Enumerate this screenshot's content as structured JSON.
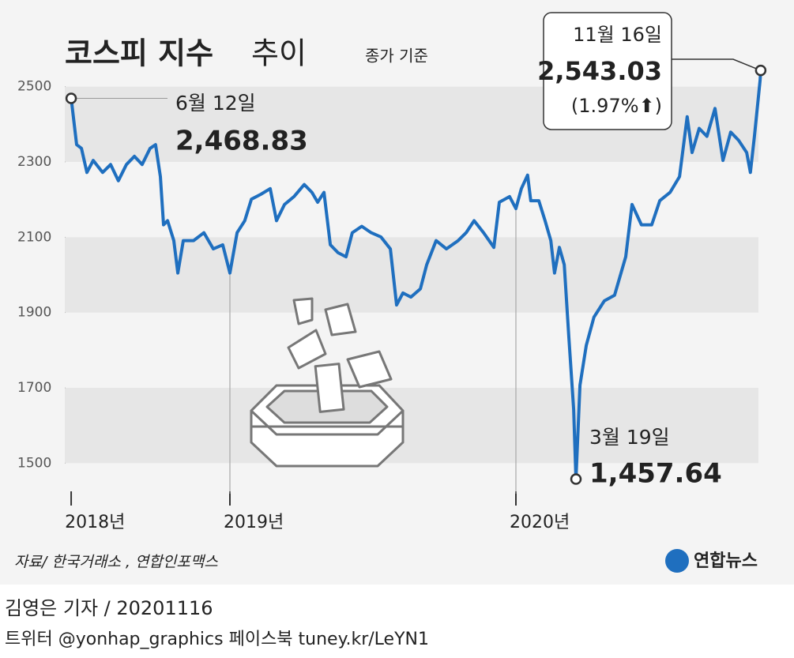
{
  "chart_data": {
    "type": "line",
    "title": "코스피 지수",
    "title_suffix": "추이",
    "subtitle": "종가 기준",
    "x": [
      2018.445,
      2018.464,
      2018.481,
      2018.5,
      2018.522,
      2018.555,
      2018.583,
      2018.61,
      2018.638,
      2018.666,
      2018.693,
      2018.721,
      2018.74,
      2018.757,
      2018.768,
      2018.782,
      2018.804,
      2018.818,
      2018.837,
      2018.873,
      2018.909,
      2018.942,
      2018.975,
      2019.0,
      2019.025,
      2019.052,
      2019.075,
      2019.108,
      2019.141,
      2019.163,
      2019.191,
      2019.224,
      2019.26,
      2019.287,
      2019.307,
      2019.329,
      2019.351,
      2019.378,
      2019.406,
      2019.428,
      2019.461,
      2019.494,
      2019.528,
      2019.561,
      2019.583,
      2019.605,
      2019.633,
      2019.666,
      2019.688,
      2019.721,
      2019.757,
      2019.798,
      2019.826,
      2019.854,
      2019.887,
      2019.923,
      2019.942,
      2019.978,
      2020.0,
      2020.019,
      2020.041,
      2020.052,
      2020.08,
      2020.102,
      2020.122,
      2020.135,
      2020.152,
      2020.169,
      2020.185,
      2020.202,
      2020.21,
      2020.224,
      2020.246,
      2020.273,
      2020.309,
      2020.345,
      2020.384,
      2020.406,
      2020.439,
      2020.475,
      2020.503,
      2020.539,
      2020.572,
      2020.599,
      2020.616,
      2020.641,
      2020.668,
      2020.696,
      2020.724,
      2020.751,
      2020.779,
      2020.807,
      2020.82,
      2020.834,
      2020.854,
      2020.856
    ],
    "values": [
      2468.83,
      2346,
      2336,
      2272,
      2304,
      2272,
      2293,
      2250,
      2293,
      2315,
      2293,
      2336,
      2346,
      2261,
      2133,
      2144,
      2091,
      2005,
      2091,
      2091,
      2112,
      2069,
      2080,
      2005,
      2112,
      2144,
      2201,
      2214,
      2229,
      2144,
      2187,
      2208,
      2240,
      2219,
      2193,
      2219,
      2080,
      2059,
      2048,
      2112,
      2129,
      2112,
      2101,
      2069,
      1920,
      1952,
      1941,
      1963,
      2027,
      2091,
      2069,
      2091,
      2112,
      2144,
      2112,
      2073,
      2193,
      2208,
      2176,
      2229,
      2265,
      2197,
      2197,
      2144,
      2091,
      2005,
      2073,
      2027,
      1835,
      1643,
      1457.64,
      1707,
      1813,
      1888,
      1931,
      1946,
      2048,
      2187,
      2133,
      2133,
      2197,
      2219,
      2261,
      2420,
      2325,
      2389,
      2368,
      2442,
      2304,
      2379,
      2357,
      2325,
      2272,
      2368,
      2517,
      2543.03
    ],
    "color": "#1f6fbf",
    "xlim": [
      2018.4,
      2020.92
    ],
    "xticks": [
      {
        "value": 2018.445,
        "label": "2018년"
      },
      {
        "value": 2019,
        "label": "2019년"
      },
      {
        "value": 2020,
        "label": "2020년"
      }
    ],
    "ylim": [
      1400,
      2600
    ],
    "yticks": [
      1500,
      1700,
      1900,
      2100,
      2300,
      2500
    ],
    "bands": true,
    "annotations": [
      {
        "date": "6월 12일",
        "label": "2,468.83"
      },
      {
        "date": "3월 19일",
        "label": "1,457.64"
      },
      {
        "date": "11월 16일",
        "label": "2,543.03",
        "change": "(1.97%⬆)"
      }
    ],
    "source": "자료/ 한국거래소 , 연합인포맥스",
    "logo": "연합뉴스"
  },
  "footer": {
    "byline": "김영은 기자 / 20201116",
    "social": "트위터 @yonhap_graphics  페이스북 tuney.kr/LeYN1"
  }
}
